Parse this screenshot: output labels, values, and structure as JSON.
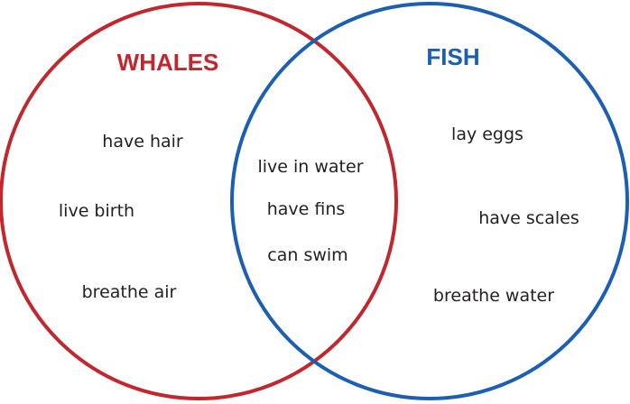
{
  "diagram": {
    "type": "venn",
    "sets": {
      "left": {
        "title": "WHALES",
        "color": "#c1272d",
        "items": [
          "have hair",
          "live birth",
          "breathe air"
        ]
      },
      "right": {
        "title": "FISH",
        "color": "#1a5fb4",
        "items": [
          "lay eggs",
          "have scales",
          "breathe water"
        ]
      },
      "overlap": {
        "items": [
          "live in water",
          "have fins",
          "can swim"
        ]
      }
    }
  }
}
